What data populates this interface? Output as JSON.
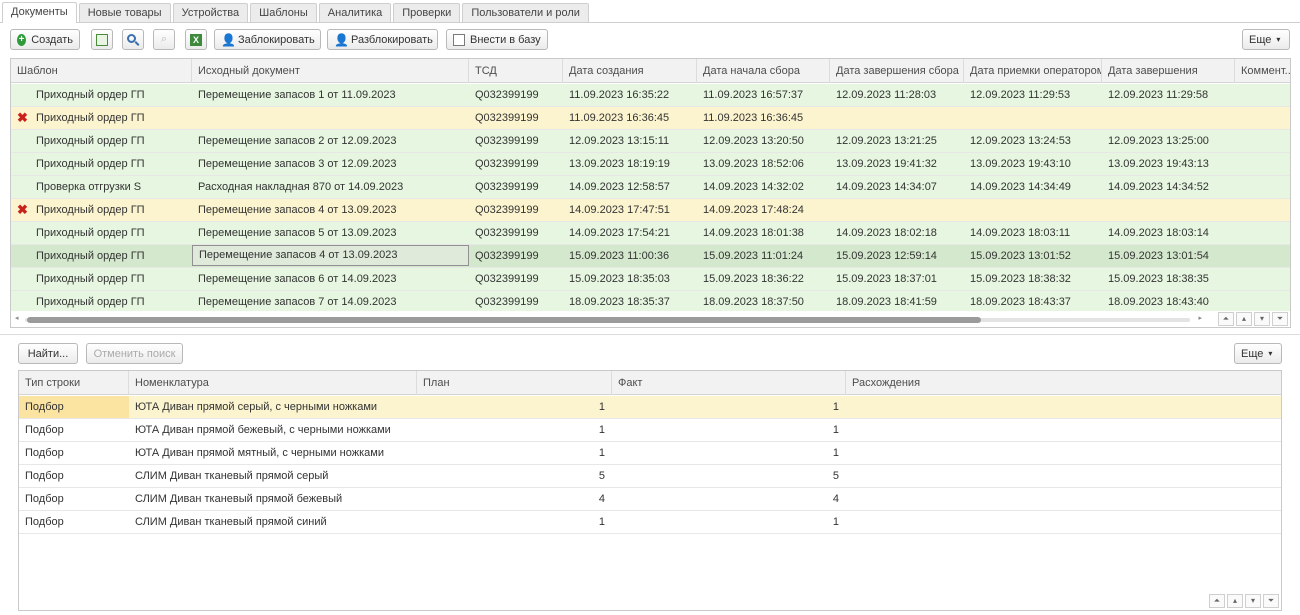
{
  "tabs": [
    "Документы",
    "Новые товары",
    "Устройства",
    "Шаблоны",
    "Аналитика",
    "Проверки",
    "Пользователи и роли"
  ],
  "toolbar": {
    "create": "Создать",
    "lock": "Заблокировать",
    "unlock": "Разблокировать",
    "add_to_db": "Внести в базу",
    "more": "Еще"
  },
  "docs_table": {
    "columns": [
      "Шаблон",
      "Исходный документ",
      "ТСД",
      "Дата создания",
      "Дата начала сбора",
      "Дата завершения сбора",
      "Дата приемки оператором",
      "Дата завершения",
      "Коммент..."
    ],
    "rows": [
      {
        "status": "green",
        "error": false,
        "template": "Приходный ордер ГП",
        "source": "Перемещение запасов 1 от 11.09.2023",
        "tsd": "Q032399199",
        "created": "11.09.2023 16:35:22",
        "start": "11.09.2023 16:57:37",
        "end_collect": "12.09.2023 11:28:03",
        "accepted": "12.09.2023 11:29:53",
        "completed": "12.09.2023 11:29:58"
      },
      {
        "status": "yellow",
        "error": true,
        "template": "Приходный ордер ГП",
        "source": "",
        "tsd": "Q032399199",
        "created": "11.09.2023 16:36:45",
        "start": "11.09.2023 16:36:45",
        "end_collect": "",
        "accepted": "",
        "completed": ""
      },
      {
        "status": "green",
        "error": false,
        "template": "Приходный ордер ГП",
        "source": "Перемещение запасов 2 от 12.09.2023",
        "tsd": "Q032399199",
        "created": "12.09.2023 13:15:11",
        "start": "12.09.2023 13:20:50",
        "end_collect": "12.09.2023 13:21:25",
        "accepted": "12.09.2023 13:24:53",
        "completed": "12.09.2023 13:25:00"
      },
      {
        "status": "green",
        "error": false,
        "template": "Приходный ордер ГП",
        "source": "Перемещение запасов 3 от 12.09.2023",
        "tsd": "Q032399199",
        "created": "13.09.2023 18:19:19",
        "start": "13.09.2023 18:52:06",
        "end_collect": "13.09.2023 19:41:32",
        "accepted": "13.09.2023 19:43:10",
        "completed": "13.09.2023 19:43:13"
      },
      {
        "status": "green",
        "error": false,
        "template": "Проверка отгрузки S",
        "source": "Расходная накладная 870 от 14.09.2023",
        "tsd": "Q032399199",
        "created": "14.09.2023 12:58:57",
        "start": "14.09.2023 14:32:02",
        "end_collect": "14.09.2023 14:34:07",
        "accepted": "14.09.2023 14:34:49",
        "completed": "14.09.2023 14:34:52"
      },
      {
        "status": "yellow",
        "error": true,
        "template": "Приходный ордер ГП",
        "source": "Перемещение запасов 4 от 13.09.2023",
        "tsd": "Q032399199",
        "created": "14.09.2023 17:47:51",
        "start": "14.09.2023 17:48:24",
        "end_collect": "",
        "accepted": "",
        "completed": ""
      },
      {
        "status": "green",
        "error": false,
        "template": "Приходный ордер ГП",
        "source": "Перемещение запасов 5 от 13.09.2023",
        "tsd": "Q032399199",
        "created": "14.09.2023 17:54:21",
        "start": "14.09.2023 18:01:38",
        "end_collect": "14.09.2023 18:02:18",
        "accepted": "14.09.2023 18:03:11",
        "completed": "14.09.2023 18:03:14"
      },
      {
        "status": "sel",
        "error": false,
        "template": "Приходный ордер ГП",
        "source": "Перемещение запасов 4 от 13.09.2023",
        "tsd": "Q032399199",
        "created": "15.09.2023 11:00:36",
        "start": "15.09.2023 11:01:24",
        "end_collect": "15.09.2023 12:59:14",
        "accepted": "15.09.2023 13:01:52",
        "completed": "15.09.2023 13:01:54"
      },
      {
        "status": "green",
        "error": false,
        "template": "Приходный ордер ГП",
        "source": "Перемещение запасов 6 от 14.09.2023",
        "tsd": "Q032399199",
        "created": "15.09.2023 18:35:03",
        "start": "15.09.2023 18:36:22",
        "end_collect": "15.09.2023 18:37:01",
        "accepted": "15.09.2023 18:38:32",
        "completed": "15.09.2023 18:38:35"
      },
      {
        "status": "green",
        "error": false,
        "template": "Приходный ордер ГП",
        "source": "Перемещение запасов 7 от 14.09.2023",
        "tsd": "Q032399199",
        "created": "18.09.2023 18:35:37",
        "start": "18.09.2023 18:37:50",
        "end_collect": "18.09.2023 18:41:59",
        "accepted": "18.09.2023 18:43:37",
        "completed": "18.09.2023 18:43:40"
      }
    ]
  },
  "search": {
    "find": "Найти...",
    "cancel": "Отменить поиск",
    "more": "Еще"
  },
  "lines_table": {
    "columns": [
      "Тип строки",
      "Номенклатура",
      "План",
      "Факт",
      "Расхождения"
    ],
    "rows": [
      {
        "type": "Подбор",
        "item": "ЮТА Диван прямой серый, с черными ножками",
        "plan": "1",
        "fact": "1",
        "diff": ""
      },
      {
        "type": "Подбор",
        "item": "ЮТА Диван прямой бежевый, с черными ножками",
        "plan": "1",
        "fact": "1",
        "diff": ""
      },
      {
        "type": "Подбор",
        "item": "ЮТА Диван прямой мятный, с черными ножками",
        "plan": "1",
        "fact": "1",
        "diff": ""
      },
      {
        "type": "Подбор",
        "item": "СЛИМ Диван тканевый прямой серый",
        "plan": "5",
        "fact": "5",
        "diff": ""
      },
      {
        "type": "Подбор",
        "item": "СЛИМ Диван тканевый прямой бежевый",
        "plan": "4",
        "fact": "4",
        "diff": ""
      },
      {
        "type": "Подбор",
        "item": "СЛИМ Диван тканевый прямой синий",
        "plan": "1",
        "fact": "1",
        "diff": ""
      }
    ]
  },
  "colors": {
    "green_row": "#e6f6e0",
    "yellow_row": "#fbf4cf",
    "selected_row": "#d4e8cd",
    "error": "#c9221a"
  }
}
